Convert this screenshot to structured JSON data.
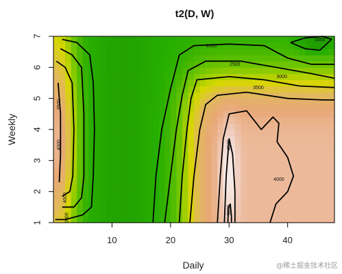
{
  "chart_data": {
    "type": "heatmap",
    "title": "t2(D, W)",
    "xlabel": "Daily",
    "ylabel": "Weekly",
    "xlim": [
      0,
      48
    ],
    "ylim": [
      1,
      7
    ],
    "xticks": [
      10,
      20,
      30,
      40
    ],
    "yticks": [
      1,
      2,
      3,
      4,
      5,
      6,
      7
    ],
    "contour_labels": [
      {
        "text": "2000",
        "x": 27,
        "y": 6.65
      },
      {
        "text": "2500",
        "x": 31,
        "y": 6.05
      },
      {
        "text": "3000",
        "x": 39,
        "y": 5.65
      },
      {
        "text": "3500",
        "x": 35,
        "y": 5.3
      },
      {
        "text": "1500",
        "x": 45.5,
        "y": 6.85
      },
      {
        "text": "3500",
        "x": 1.2,
        "y": 4.8
      },
      {
        "text": "4000",
        "x": 1.2,
        "y": 3.5
      },
      {
        "text": "4000",
        "x": 2.2,
        "y": 1.8
      },
      {
        "text": "2000",
        "x": 2.5,
        "y": 1.15
      },
      {
        "text": "4000",
        "x": 38.5,
        "y": 2.35
      },
      {
        "text": "4500",
        "x": 30.2,
        "y": 3.5
      },
      {
        "text": "5000",
        "x": 30.2,
        "y": 1.4
      }
    ],
    "colors": {
      "low": "#1fa300",
      "mid": "#d8d800",
      "high": "#e8a878",
      "peak": "#f4e8e4",
      "contour": "#000000"
    }
  },
  "watermark": "@稀土掘金技术社区"
}
